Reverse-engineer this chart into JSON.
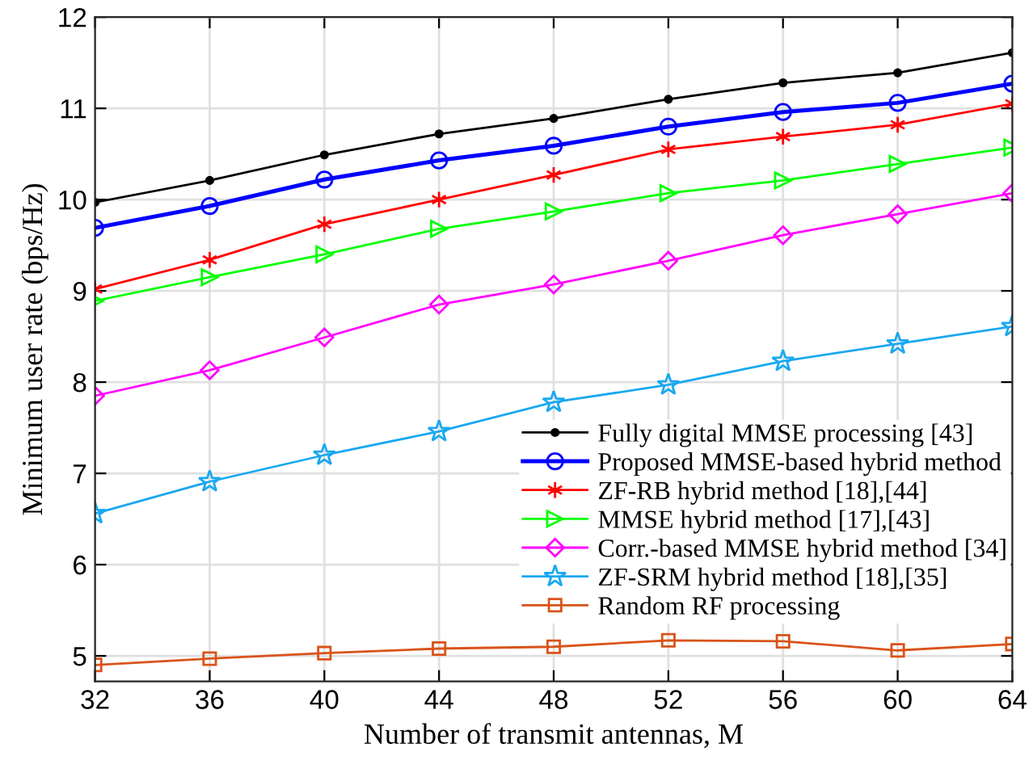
{
  "chart_data": {
    "type": "line",
    "xlabel": "Number of transmit antennas, M",
    "ylabel": "Minimum user rate (bps/Hz)",
    "x": [
      32,
      36,
      40,
      44,
      48,
      52,
      56,
      60,
      64
    ],
    "xlim": [
      32,
      64
    ],
    "xticks": [
      32,
      36,
      40,
      44,
      48,
      52,
      56,
      60,
      64
    ],
    "ylim": [
      4.72,
      12
    ],
    "yticks": [
      5,
      6,
      7,
      8,
      9,
      10,
      11,
      12
    ],
    "grid": true,
    "legend": "right",
    "line_style": "solid",
    "series": [
      {
        "name": "Fully digital MMSE processing [43]",
        "color": "#000000",
        "marker": "point",
        "values": [
          9.97,
          10.21,
          10.49,
          10.72,
          10.89,
          11.1,
          11.28,
          11.39,
          11.61
        ]
      },
      {
        "name": "Proposed MMSE-based hybrid method",
        "color": "#0000ff",
        "marker": "circle",
        "values": [
          9.69,
          9.93,
          10.22,
          10.43,
          10.59,
          10.8,
          10.96,
          11.06,
          11.27
        ]
      },
      {
        "name": "ZF-RB hybrid method [18],[44]",
        "color": "#ff0000",
        "marker": "cross",
        "values": [
          9.02,
          9.34,
          9.73,
          10.0,
          10.27,
          10.55,
          10.69,
          10.82,
          11.05
        ]
      },
      {
        "name": "MMSE hybrid method [17],[43]",
        "color": "#00ff00",
        "marker": "triangle",
        "values": [
          8.89,
          9.15,
          9.4,
          9.68,
          9.87,
          10.07,
          10.21,
          10.39,
          10.57
        ]
      },
      {
        "name": "Corr.-based MMSE hybrid method [34]",
        "color": "#ff00ff",
        "marker": "diamond",
        "values": [
          7.85,
          8.13,
          8.49,
          8.85,
          9.07,
          9.33,
          9.61,
          9.84,
          10.07
        ]
      },
      {
        "name": "ZF-SRM hybrid method [18],[35]",
        "color": "#1aa8f0",
        "marker": "star",
        "values": [
          6.56,
          6.91,
          7.2,
          7.46,
          7.78,
          7.97,
          8.23,
          8.42,
          8.61
        ]
      },
      {
        "name": "Random RF processing",
        "color": "#d95319",
        "marker": "square",
        "values": [
          4.9,
          4.97,
          5.03,
          5.08,
          5.1,
          5.17,
          5.16,
          5.06,
          5.13
        ]
      }
    ]
  }
}
